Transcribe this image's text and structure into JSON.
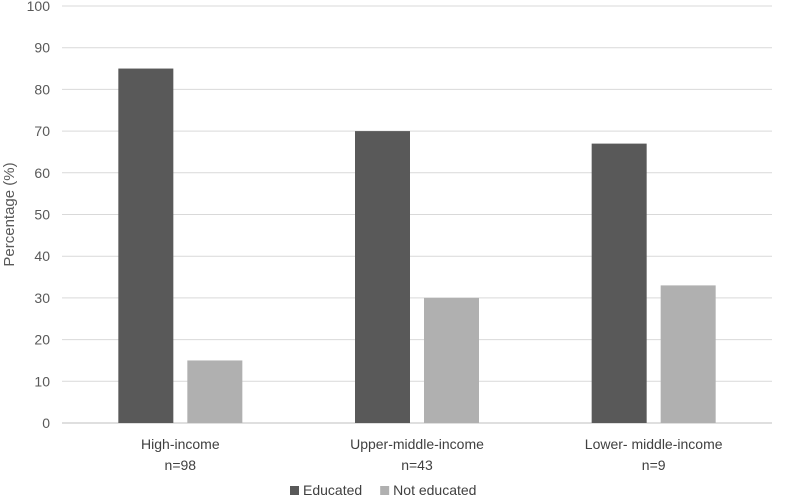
{
  "chart_data": {
    "type": "bar",
    "title": "",
    "xlabel": "",
    "ylabel": "Percentage (%)",
    "ylim": [
      0,
      100
    ],
    "ytick_step": 10,
    "grid": "horizontal",
    "legend_position": "bottom",
    "categories": [
      "High-income",
      "Upper-middle-income",
      "Lower- middle-income"
    ],
    "category_sublabels": [
      "n=98",
      "n=43",
      "n=9"
    ],
    "series": [
      {
        "name": "Educated",
        "color": "#595959",
        "values": [
          85,
          70,
          67
        ]
      },
      {
        "name": "Not educated",
        "color": "#b0b0b0",
        "values": [
          15,
          30,
          33
        ]
      }
    ]
  }
}
